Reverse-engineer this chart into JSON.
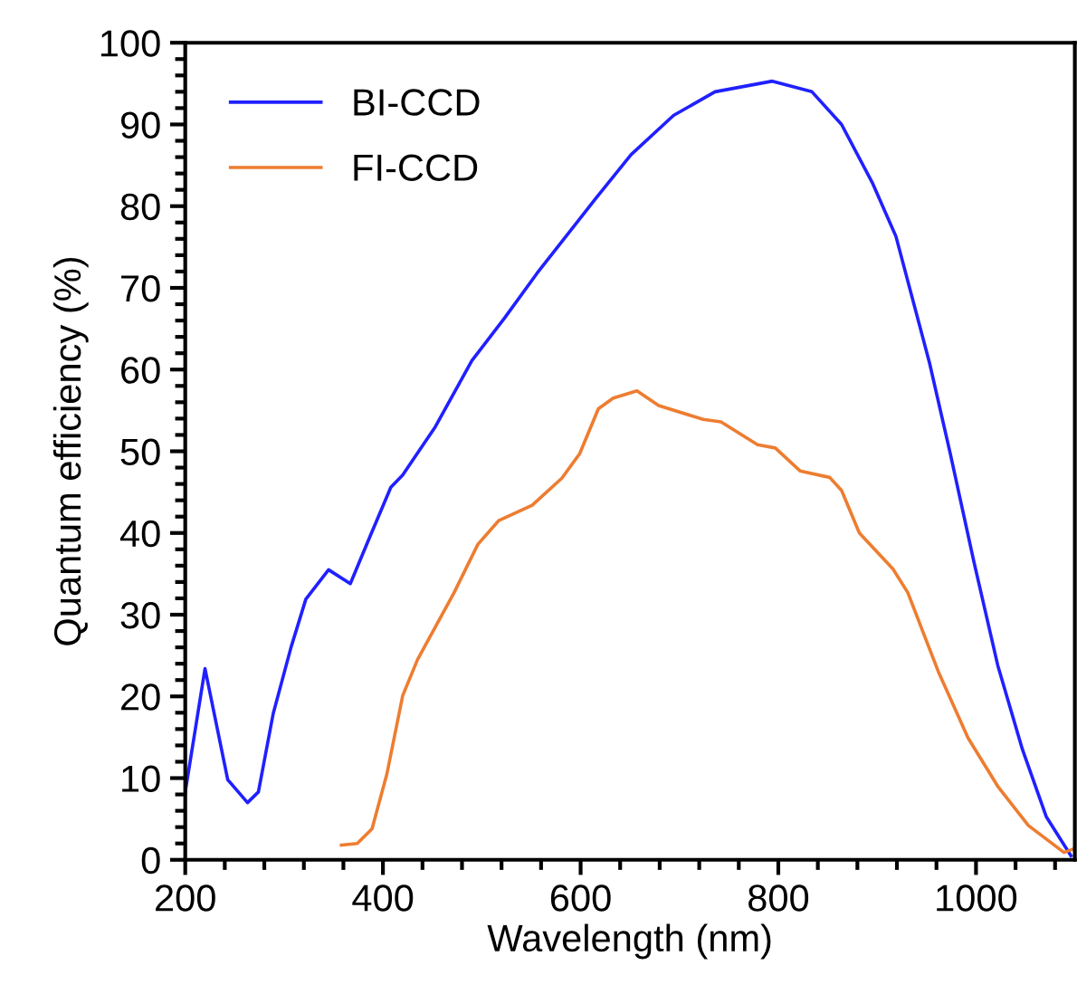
{
  "chart_data": {
    "type": "line",
    "xlabel": "Wavelength (nm)",
    "ylabel": "Quantum efficiency (%)",
    "xlim": [
      200,
      1100
    ],
    "ylim": [
      0,
      100
    ],
    "xticks": [
      200,
      400,
      600,
      800,
      1000
    ],
    "yticks": [
      0,
      10,
      20,
      30,
      40,
      50,
      60,
      70,
      80,
      90,
      100
    ],
    "grid": false,
    "legend": "top left",
    "marker": "none",
    "line_style": "solid",
    "series": [
      {
        "name": "BI-CCD",
        "color": "#2020ff",
        "x": [
          200,
          220,
          243,
          263,
          274,
          289,
          307,
          322,
          345,
          367,
          386,
          408,
          420,
          453,
          490,
          523,
          556,
          615,
          651,
          694,
          736,
          794,
          834,
          864,
          895,
          919,
          953,
          974,
          998,
          1022,
          1047,
          1071,
          1096
        ],
        "values": [
          8.3,
          23.4,
          9.8,
          7.0,
          8.3,
          17.9,
          26.0,
          31.9,
          35.5,
          33.8,
          39.3,
          45.6,
          47.1,
          53.0,
          61.1,
          66.3,
          71.8,
          80.9,
          86.3,
          91.1,
          94.0,
          95.3,
          94.0,
          90.0,
          82.9,
          76.3,
          60.8,
          49.7,
          36.4,
          23.8,
          13.5,
          5.3,
          0.5
        ]
      },
      {
        "name": "FI-CCD",
        "color": "#ed7d31",
        "x": [
          358,
          374,
          389,
          404,
          420,
          435,
          472,
          496,
          517,
          551,
          581,
          599,
          618,
          633,
          657,
          679,
          724,
          742,
          779,
          797,
          822,
          852,
          864,
          882,
          916,
          931,
          962,
          992,
          1022,
          1053,
          1089,
          1098
        ],
        "values": [
          1.8,
          2.0,
          3.8,
          10.5,
          20.1,
          24.5,
          32.7,
          38.6,
          41.5,
          43.4,
          46.7,
          49.7,
          55.2,
          56.5,
          57.4,
          55.6,
          53.9,
          53.6,
          50.8,
          50.4,
          47.6,
          46.8,
          45.2,
          40.0,
          35.6,
          32.7,
          23.0,
          14.9,
          9.0,
          4.2,
          0.9,
          1.3
        ]
      }
    ]
  }
}
